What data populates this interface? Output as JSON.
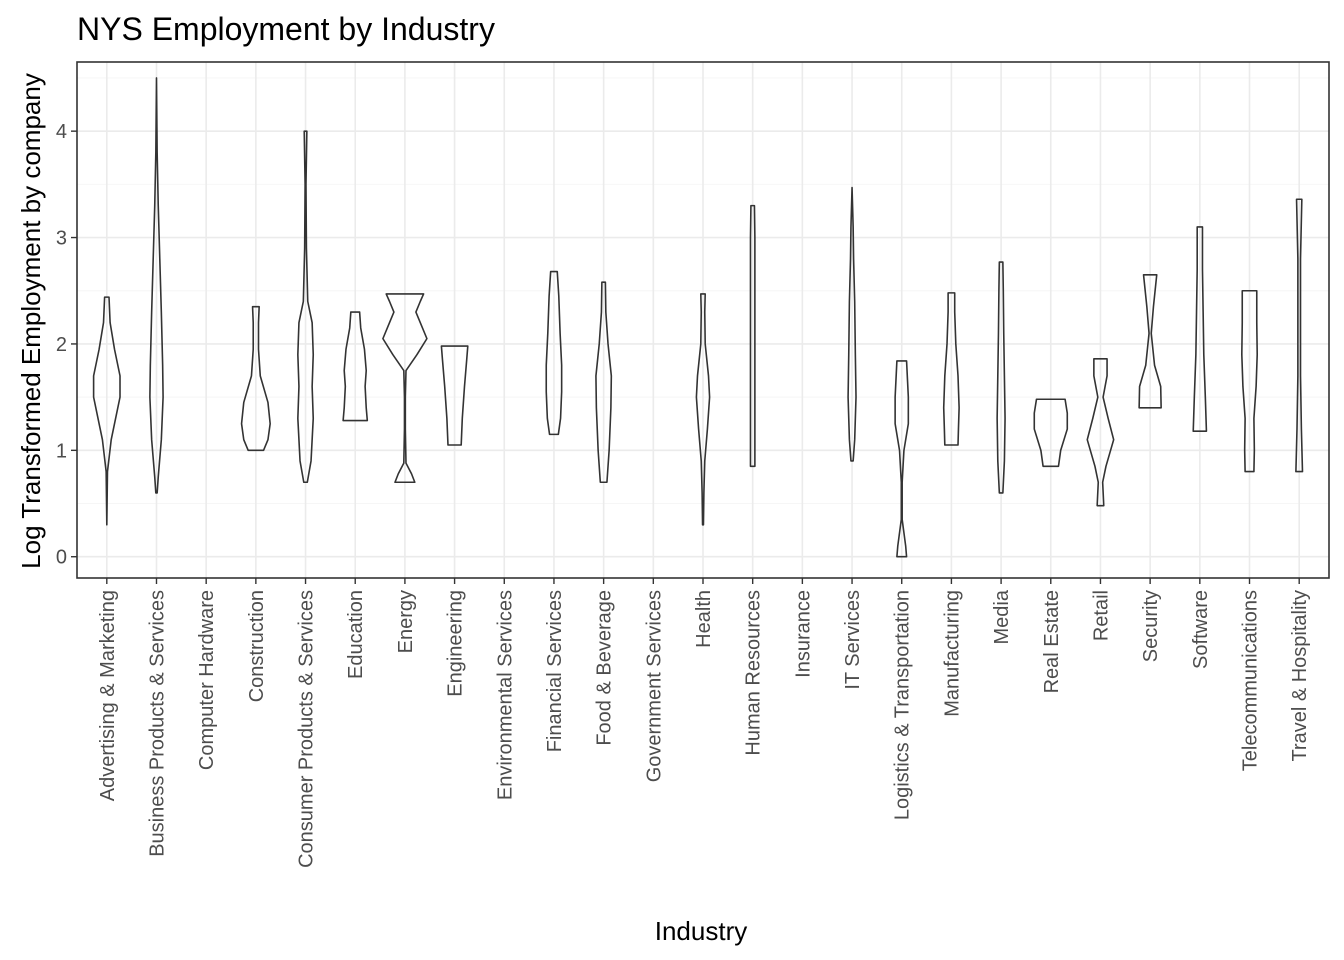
{
  "chart_data": {
    "type": "violin",
    "title": "NYS Employment by Industry",
    "xlabel": "Industry",
    "ylabel": "Log Transformed Employment by company",
    "ylim": [
      -0.2,
      4.65
    ],
    "yticks": [
      0,
      1,
      2,
      3,
      4
    ],
    "grid": true,
    "theme": "bw",
    "colors": {
      "outline": "#333333",
      "grid": "#ebebeb",
      "tick_text": "#4d4d4d"
    },
    "categories": [
      "Advertising & Marketing",
      "Business Products & Services",
      "Computer Hardware",
      "Construction",
      "Consumer Products & Services",
      "Education",
      "Energy",
      "Engineering",
      "Environmental Services",
      "Financial Services",
      "Food & Beverage",
      "Government Services",
      "Health",
      "Human Resources",
      "Insurance",
      "IT Services",
      "Logistics & Transportation",
      "Manufacturing",
      "Media",
      "Real Estate",
      "Retail",
      "Security",
      "Software",
      "Telecommunications",
      "Travel & Hospitality"
    ],
    "violins": [
      {
        "category": "Advertising & Marketing",
        "profile": [
          [
            0.3,
            0.0
          ],
          [
            0.8,
            0.03
          ],
          [
            1.1,
            0.2
          ],
          [
            1.5,
            0.6
          ],
          [
            1.7,
            0.6
          ],
          [
            1.95,
            0.35
          ],
          [
            2.2,
            0.15
          ],
          [
            2.44,
            0.1
          ]
        ]
      },
      {
        "category": "Business Products & Services",
        "profile": [
          [
            0.6,
            0.03
          ],
          [
            0.75,
            0.08
          ],
          [
            1.1,
            0.22
          ],
          [
            1.5,
            0.3
          ],
          [
            1.8,
            0.28
          ],
          [
            2.3,
            0.22
          ],
          [
            2.8,
            0.15
          ],
          [
            3.3,
            0.08
          ],
          [
            3.8,
            0.03
          ],
          [
            4.5,
            0.0
          ]
        ]
      },
      {
        "category": "Computer Hardware",
        "profile": []
      },
      {
        "category": "Construction",
        "profile": [
          [
            1.0,
            0.35
          ],
          [
            1.1,
            0.55
          ],
          [
            1.25,
            0.65
          ],
          [
            1.45,
            0.55
          ],
          [
            1.7,
            0.2
          ],
          [
            1.95,
            0.12
          ],
          [
            2.2,
            0.12
          ],
          [
            2.35,
            0.15
          ]
        ]
      },
      {
        "category": "Consumer Products & Services",
        "profile": [
          [
            0.7,
            0.08
          ],
          [
            0.9,
            0.25
          ],
          [
            1.3,
            0.35
          ],
          [
            1.6,
            0.3
          ],
          [
            1.9,
            0.35
          ],
          [
            2.2,
            0.3
          ],
          [
            2.4,
            0.1
          ],
          [
            2.9,
            0.04
          ],
          [
            3.5,
            0.02
          ],
          [
            4.0,
            0.06
          ]
        ]
      },
      {
        "category": "Education",
        "profile": [
          [
            1.28,
            0.55
          ],
          [
            1.4,
            0.5
          ],
          [
            1.6,
            0.45
          ],
          [
            1.75,
            0.5
          ],
          [
            1.95,
            0.42
          ],
          [
            2.15,
            0.25
          ],
          [
            2.3,
            0.2
          ]
        ]
      },
      {
        "category": "Energy",
        "profile": [
          [
            0.7,
            0.45
          ],
          [
            0.78,
            0.3
          ],
          [
            0.88,
            0.05
          ],
          [
            1.2,
            0.02
          ],
          [
            1.5,
            0.02
          ],
          [
            1.75,
            0.05
          ],
          [
            1.9,
            0.55
          ],
          [
            2.05,
            1.0
          ],
          [
            2.2,
            0.7
          ],
          [
            2.3,
            0.5
          ],
          [
            2.4,
            0.7
          ],
          [
            2.47,
            0.85
          ]
        ]
      },
      {
        "category": "Engineering",
        "profile": [
          [
            1.05,
            0.3
          ],
          [
            1.3,
            0.35
          ],
          [
            1.6,
            0.45
          ],
          [
            1.85,
            0.55
          ],
          [
            1.98,
            0.6
          ]
        ]
      },
      {
        "category": "Environmental Services",
        "profile": []
      },
      {
        "category": "Financial Services",
        "profile": [
          [
            1.15,
            0.2
          ],
          [
            1.3,
            0.3
          ],
          [
            1.55,
            0.35
          ],
          [
            1.8,
            0.35
          ],
          [
            2.1,
            0.28
          ],
          [
            2.45,
            0.22
          ],
          [
            2.68,
            0.15
          ]
        ]
      },
      {
        "category": "Food & Beverage",
        "profile": [
          [
            0.7,
            0.15
          ],
          [
            1.0,
            0.25
          ],
          [
            1.4,
            0.33
          ],
          [
            1.7,
            0.35
          ],
          [
            2.0,
            0.2
          ],
          [
            2.3,
            0.1
          ],
          [
            2.58,
            0.08
          ]
        ]
      },
      {
        "category": "Government Services",
        "profile": []
      },
      {
        "category": "Health",
        "profile": [
          [
            0.3,
            0.02
          ],
          [
            0.6,
            0.04
          ],
          [
            0.9,
            0.08
          ],
          [
            1.2,
            0.2
          ],
          [
            1.5,
            0.3
          ],
          [
            1.7,
            0.25
          ],
          [
            2.0,
            0.1
          ],
          [
            2.3,
            0.08
          ],
          [
            2.47,
            0.1
          ]
        ]
      },
      {
        "category": "Human Resources",
        "profile": [
          [
            0.85,
            0.1
          ],
          [
            1.2,
            0.1
          ],
          [
            1.6,
            0.1
          ],
          [
            2.1,
            0.1
          ],
          [
            2.6,
            0.1
          ],
          [
            3.0,
            0.1
          ],
          [
            3.3,
            0.08
          ]
        ]
      },
      {
        "category": "Insurance",
        "profile": []
      },
      {
        "category": "IT Services",
        "profile": [
          [
            0.9,
            0.05
          ],
          [
            1.1,
            0.12
          ],
          [
            1.5,
            0.18
          ],
          [
            1.9,
            0.15
          ],
          [
            2.4,
            0.12
          ],
          [
            2.8,
            0.07
          ],
          [
            3.1,
            0.05
          ],
          [
            3.47,
            0.0
          ]
        ]
      },
      {
        "category": "Logistics & Transportation",
        "profile": [
          [
            0.0,
            0.22
          ],
          [
            0.1,
            0.18
          ],
          [
            0.35,
            0.02
          ],
          [
            0.7,
            0.02
          ],
          [
            1.0,
            0.1
          ],
          [
            1.25,
            0.3
          ],
          [
            1.5,
            0.3
          ],
          [
            1.84,
            0.22
          ]
        ]
      },
      {
        "category": "Manufacturing",
        "profile": [
          [
            1.05,
            0.3
          ],
          [
            1.2,
            0.32
          ],
          [
            1.4,
            0.35
          ],
          [
            1.7,
            0.3
          ],
          [
            2.0,
            0.2
          ],
          [
            2.3,
            0.15
          ],
          [
            2.48,
            0.15
          ]
        ]
      },
      {
        "category": "Media",
        "profile": [
          [
            0.6,
            0.08
          ],
          [
            0.9,
            0.15
          ],
          [
            1.3,
            0.18
          ],
          [
            1.7,
            0.15
          ],
          [
            2.1,
            0.12
          ],
          [
            2.5,
            0.1
          ],
          [
            2.77,
            0.08
          ]
        ]
      },
      {
        "category": "Real Estate",
        "profile": [
          [
            0.85,
            0.35
          ],
          [
            1.0,
            0.45
          ],
          [
            1.2,
            0.75
          ],
          [
            1.35,
            0.75
          ],
          [
            1.48,
            0.65
          ]
        ]
      },
      {
        "category": "Retail",
        "profile": [
          [
            0.48,
            0.15
          ],
          [
            0.7,
            0.1
          ],
          [
            0.85,
            0.25
          ],
          [
            1.1,
            0.6
          ],
          [
            1.3,
            0.35
          ],
          [
            1.5,
            0.12
          ],
          [
            1.7,
            0.3
          ],
          [
            1.86,
            0.3
          ]
        ]
      },
      {
        "category": "Security",
        "profile": [
          [
            1.4,
            0.5
          ],
          [
            1.6,
            0.48
          ],
          [
            1.8,
            0.2
          ],
          [
            2.1,
            0.05
          ],
          [
            2.35,
            0.15
          ],
          [
            2.65,
            0.3
          ]
        ]
      },
      {
        "category": "Software",
        "profile": [
          [
            1.18,
            0.3
          ],
          [
            1.5,
            0.25
          ],
          [
            1.9,
            0.18
          ],
          [
            2.3,
            0.15
          ],
          [
            2.7,
            0.12
          ],
          [
            3.1,
            0.12
          ]
        ]
      },
      {
        "category": "Telecommunications",
        "profile": [
          [
            0.8,
            0.2
          ],
          [
            1.0,
            0.22
          ],
          [
            1.3,
            0.2
          ],
          [
            1.6,
            0.3
          ],
          [
            1.9,
            0.35
          ],
          [
            2.2,
            0.33
          ],
          [
            2.5,
            0.33
          ]
        ]
      },
      {
        "category": "Travel & Hospitality",
        "profile": [
          [
            0.8,
            0.15
          ],
          [
            1.2,
            0.1
          ],
          [
            1.7,
            0.06
          ],
          [
            2.2,
            0.06
          ],
          [
            2.8,
            0.06
          ],
          [
            3.36,
            0.12
          ]
        ]
      }
    ]
  }
}
